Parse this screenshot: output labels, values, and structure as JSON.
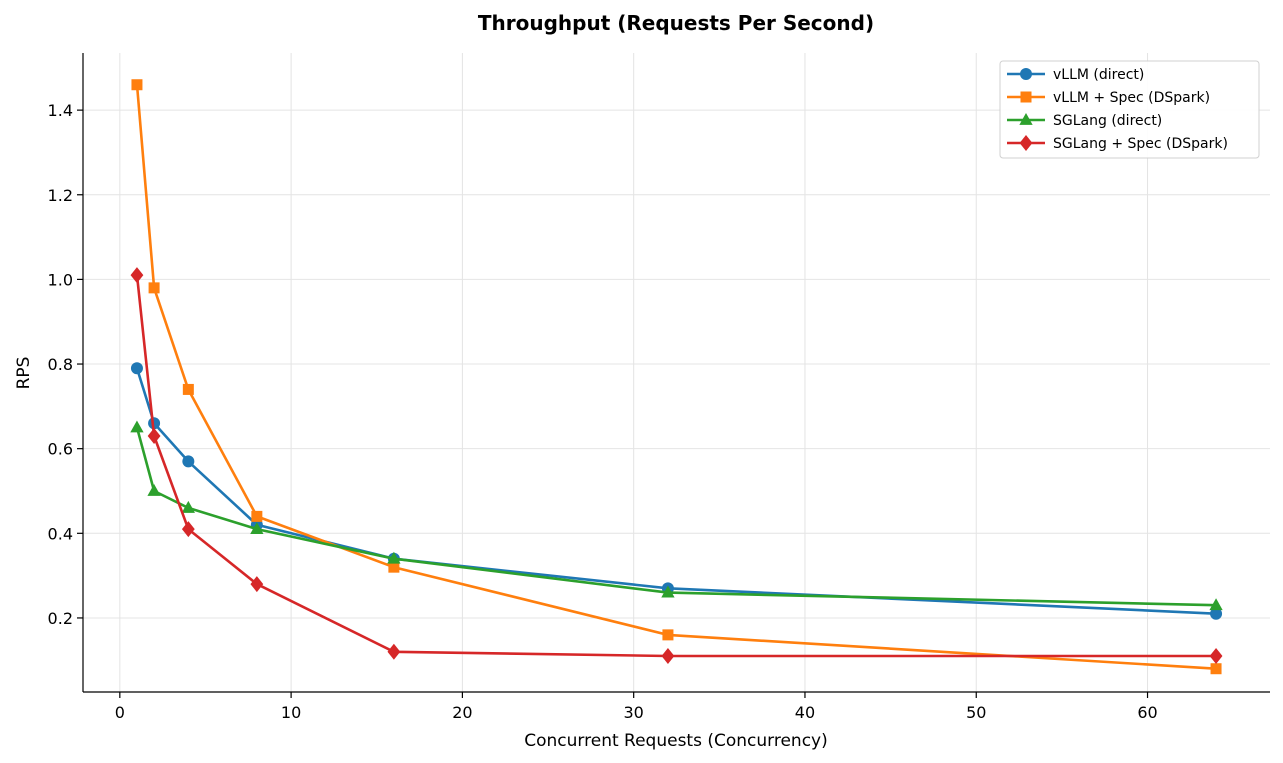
{
  "chart_data": {
    "type": "line",
    "title": "Throughput (Requests Per Second)",
    "xlabel": "Concurrent Requests (Concurrency)",
    "ylabel": "RPS",
    "x": [
      1,
      2,
      4,
      8,
      16,
      32,
      64
    ],
    "xlim": [
      -2.15,
      67.15
    ],
    "ylim": [
      0.025,
      1.535
    ],
    "xticks": [
      0,
      10,
      20,
      30,
      40,
      50,
      60
    ],
    "yticks": [
      0.2,
      0.4,
      0.6,
      0.8,
      1.0,
      1.2,
      1.4
    ],
    "xtick_labels": [
      "0",
      "10",
      "20",
      "30",
      "40",
      "50",
      "60"
    ],
    "ytick_labels": [
      "0.2",
      "0.4",
      "0.6",
      "0.8",
      "1.0",
      "1.2",
      "1.4"
    ],
    "grid": true,
    "legend_position": "top-right",
    "series": [
      {
        "name": "vLLM (direct)",
        "marker": "circle",
        "color": "#1f77b4",
        "values": [
          0.79,
          0.66,
          0.57,
          0.42,
          0.34,
          0.27,
          0.21
        ]
      },
      {
        "name": "vLLM + Spec (DSpark)",
        "marker": "square",
        "color": "#ff7f0e",
        "values": [
          1.46,
          0.98,
          0.74,
          0.44,
          0.32,
          0.16,
          0.08
        ]
      },
      {
        "name": "SGLang (direct)",
        "marker": "triangle",
        "color": "#2ca02c",
        "values": [
          0.65,
          0.5,
          0.46,
          0.41,
          0.34,
          0.26,
          0.23
        ]
      },
      {
        "name": "SGLang + Spec (DSpark)",
        "marker": "diamond",
        "color": "#d62728",
        "values": [
          1.01,
          0.63,
          0.41,
          0.28,
          0.12,
          0.11,
          0.11
        ]
      }
    ]
  }
}
